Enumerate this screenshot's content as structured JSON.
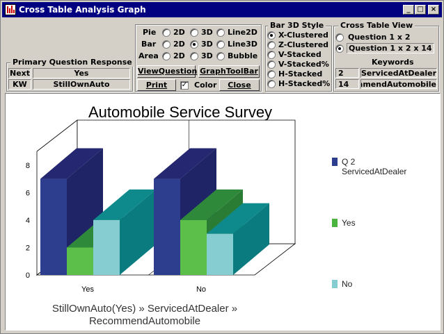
{
  "window": {
    "title": "Cross Table Analysis Graph",
    "controls": [
      "_",
      "□",
      "×"
    ]
  },
  "chart_type_group": {
    "rows": [
      {
        "label": "Pie",
        "options": [
          "2D",
          "3D",
          "Line2D"
        ],
        "selected": -1
      },
      {
        "label": "Bar",
        "options": [
          "2D",
          "3D",
          "Line3D"
        ],
        "selected": 1
      },
      {
        "label": "Area",
        "options": [
          "2D",
          "3D",
          "Bubble"
        ],
        "selected": -1
      }
    ],
    "view_question": "ViewQuestion",
    "graph_toolbar": "GraphToolBar",
    "print": "Print",
    "color_label": "Color",
    "color_checked": true,
    "close": "Close"
  },
  "primary": {
    "title": "Primary Question Response",
    "next_label": "Next",
    "next_value": "Yes",
    "kw_label": "KW",
    "kw_value": "StillOwnAuto"
  },
  "bar3d": {
    "title": "Bar 3D Style",
    "options": [
      "X-Clustered",
      "Z-Clustered",
      "V-Stacked",
      "V-Stacked%",
      "H-Stacked",
      "H-Stacked%"
    ],
    "selected": 0
  },
  "crosstab": {
    "title": "Cross Table View",
    "options": [
      "Question  1 x  2",
      "Question  1 x 2 x 14"
    ],
    "selected": 1,
    "keywords_title": "Keywords",
    "keywords": [
      {
        "num": "2",
        "name": "ServicedAtDealer"
      },
      {
        "num": "14",
        "name": "RecommendAutomobile"
      }
    ]
  },
  "chart_data": {
    "type": "bar",
    "title": "Automobile Service Survey",
    "subtitle_lines": [
      "StillOwnAuto(Yes) » ServicedAtDealer »",
      "RecommendAutomobile"
    ],
    "categories": [
      "Yes",
      "No"
    ],
    "ylim": [
      0,
      9
    ],
    "yticks": [
      0,
      2,
      4,
      6,
      8
    ],
    "series": [
      {
        "name": "Q 2 ServicedAtDealer",
        "values": [
          7,
          7
        ],
        "color": "#2e3e8e",
        "top": "#252770",
        "side": "#1e2466"
      },
      {
        "name": "Yes",
        "values": [
          2,
          4
        ],
        "color": "#5cbf4a",
        "top": "#2e8a3a",
        "side": "#2a7c34"
      },
      {
        "name": "No",
        "values": [
          4,
          3
        ],
        "color": "#86cdd2",
        "top": "#0e8a8c",
        "side": "#0a7c80"
      }
    ],
    "legend": [
      {
        "line1": "Q 2",
        "line2": "ServicedAtDealer",
        "color": "#2e3e8e"
      },
      {
        "line1": "Yes",
        "line2": "",
        "color": "#4bb43e"
      },
      {
        "line1": "No",
        "line2": "",
        "color": "#86cdd2"
      }
    ]
  }
}
